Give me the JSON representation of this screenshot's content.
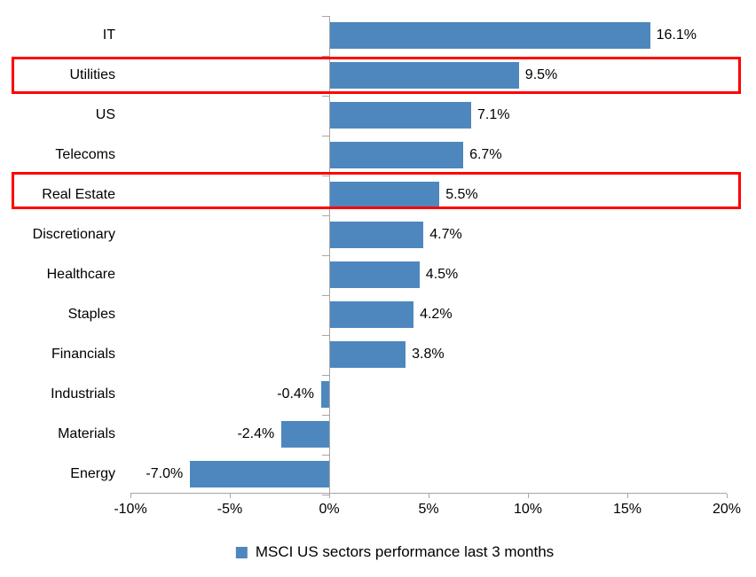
{
  "page": {
    "background_color": "#FFFFFF"
  },
  "chart_data": {
    "type": "bar",
    "orientation": "horizontal",
    "title": "",
    "xlabel": "",
    "ylabel": "",
    "categories": [
      "IT",
      "Utilities",
      "US",
      "Telecoms",
      "Real Estate",
      "Discretionary",
      "Healthcare",
      "Staples",
      "Financials",
      "Industrials",
      "Materials",
      "Energy"
    ],
    "values": [
      16.1,
      9.5,
      7.1,
      6.7,
      5.5,
      4.7,
      4.5,
      4.2,
      3.8,
      -0.4,
      -2.4,
      -7.0
    ],
    "data_labels": [
      "16.1%",
      "9.5%",
      "7.1%",
      "6.7%",
      "5.5%",
      "4.7%",
      "4.5%",
      "4.2%",
      "3.8%",
      "-0.4%",
      "-2.4%",
      "-7.0%"
    ],
    "highlighted_categories": [
      "Utilities",
      "Real Estate"
    ],
    "x_tick_labels": [
      "-10%",
      "-5%",
      "0%",
      "5%",
      "10%",
      "15%",
      "20%"
    ],
    "x_tick_values": [
      -10,
      -5,
      0,
      5,
      10,
      15,
      20
    ],
    "xlim": [
      -10,
      20
    ],
    "grid": false,
    "legend": "MSCI US sectors performance last 3 months",
    "legend_position": "bottom-center",
    "bar_color": "#4E87BE",
    "highlight_color": "#FF0000",
    "axis_color": "#A6A6A6",
    "text_color": "#000000"
  }
}
